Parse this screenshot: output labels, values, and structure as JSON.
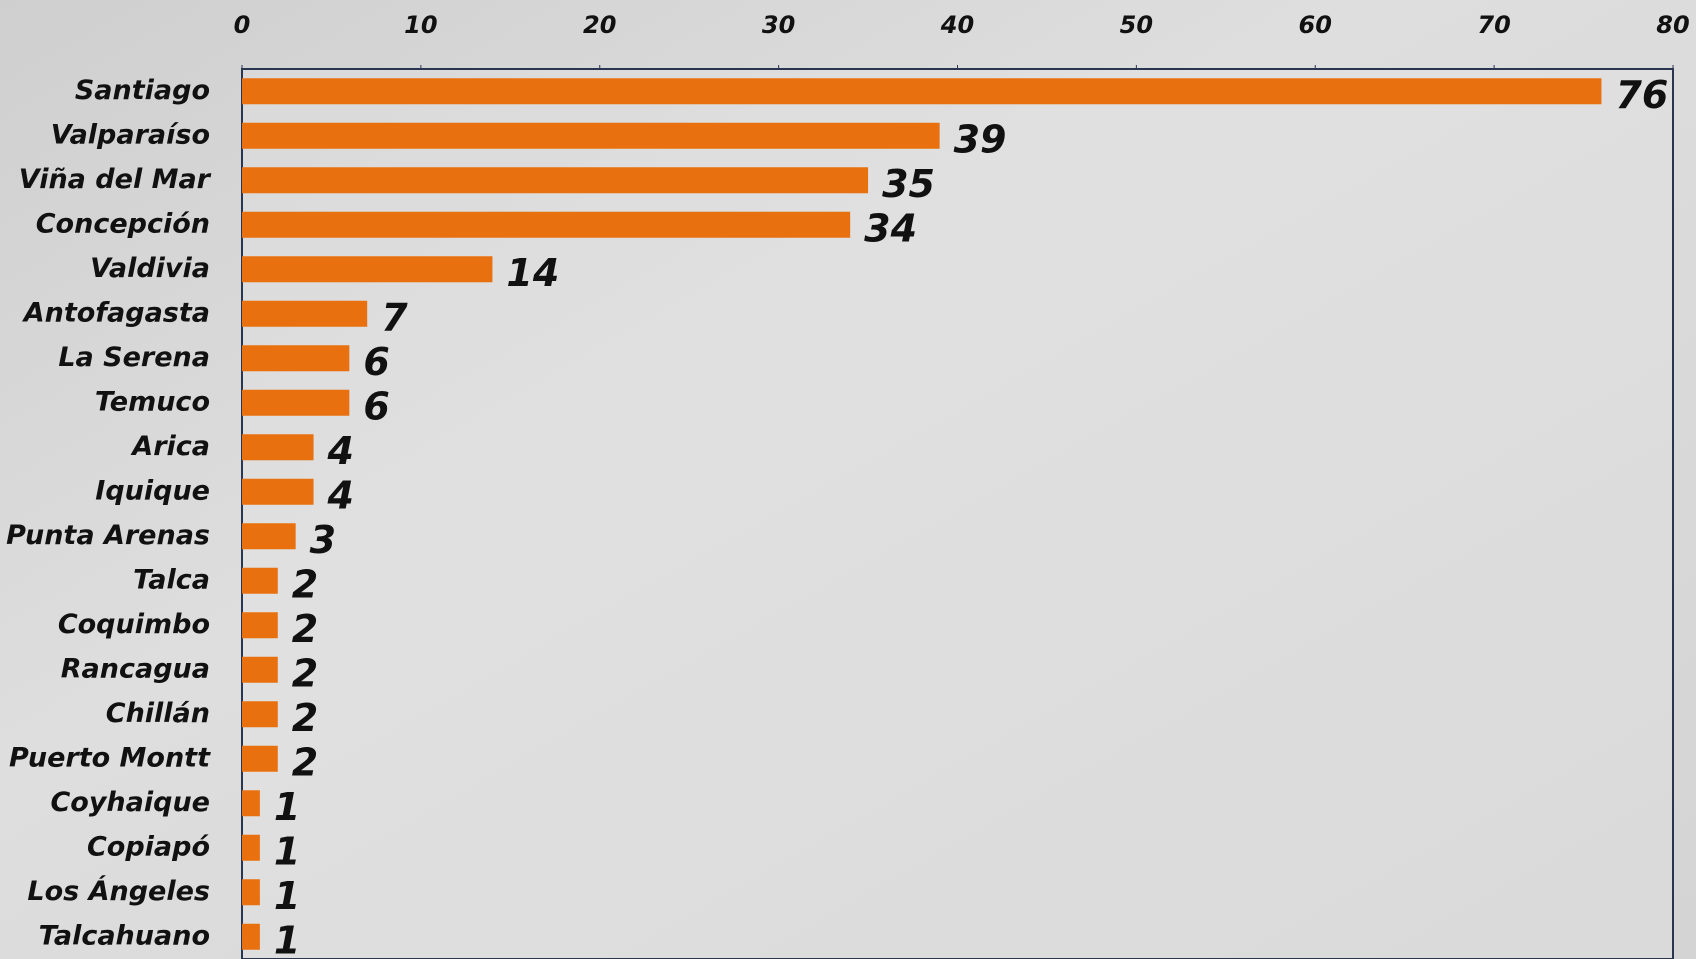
{
  "chart_data": {
    "type": "bar",
    "orientation": "horizontal",
    "categories": [
      "Santiago",
      "Valparaíso",
      "Viña del Mar",
      "Concepción",
      "Valdivia",
      "Antofagasta",
      "La Serena",
      "Temuco",
      "Arica",
      "Iquique",
      "Punta Arenas",
      "Talca",
      "Coquimbo",
      "Rancagua",
      "Chillán",
      "Puerto Montt",
      "Coyhaique",
      "Copiapó",
      "Los Ángeles",
      "Talcahuano"
    ],
    "values": [
      76,
      39,
      35,
      34,
      14,
      7,
      6,
      6,
      4,
      4,
      3,
      2,
      2,
      2,
      2,
      2,
      1,
      1,
      1,
      1
    ],
    "color": "#e8700f",
    "xlim": [
      0,
      80
    ],
    "xticks": [
      0,
      10,
      20,
      30,
      40,
      50,
      60,
      70,
      80
    ]
  }
}
